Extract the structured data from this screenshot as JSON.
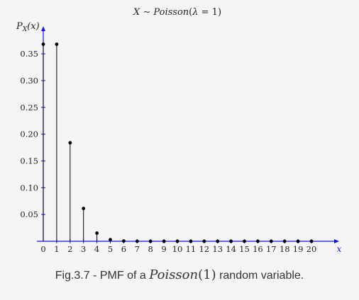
{
  "chart_data": {
    "type": "stem",
    "title": "X ~ Poisson(λ = 1)",
    "xlabel": "x",
    "ylabel": "P_X(x)",
    "x": [
      0,
      1,
      2,
      3,
      4,
      5,
      6,
      7,
      8,
      9,
      10,
      11,
      12,
      13,
      14,
      15,
      16,
      17,
      18,
      19,
      20
    ],
    "y": [
      0.3679,
      0.3679,
      0.1839,
      0.0613,
      0.0153,
      0.0031,
      0.0005,
      0.0001,
      0,
      0,
      0,
      0,
      0,
      0,
      0,
      0,
      0,
      0,
      0,
      0,
      0
    ],
    "yticks": [
      0.05,
      0.1,
      0.15,
      0.2,
      0.25,
      0.3,
      0.35
    ],
    "ytick_labels": [
      "0.05",
      "0.10",
      "0.15",
      "0.20",
      "0.25",
      "0.30",
      "0.35"
    ],
    "xlim": [
      -0.5,
      22
    ],
    "ylim": [
      0,
      0.4
    ],
    "grid": false,
    "colors": {
      "axis": "#1414e6",
      "stem": "#000000",
      "text": "#222222"
    }
  },
  "title_parts": {
    "var": "X",
    "sim": "∼",
    "dist": "Poisson",
    "lparen": "(",
    "lambda": "λ",
    "eq": " = ",
    "val": "1",
    "rparen": ")"
  },
  "ylabel_parts": {
    "P": "P",
    "sub": "X",
    "arg": "(x)"
  },
  "xlabel": "x",
  "caption": {
    "prefix": "Fig.3.7 - PMF of a ",
    "dist": "Poisson",
    "lparen": "(",
    "num": "1",
    "rparen": ")",
    "suffix": " random variable."
  }
}
